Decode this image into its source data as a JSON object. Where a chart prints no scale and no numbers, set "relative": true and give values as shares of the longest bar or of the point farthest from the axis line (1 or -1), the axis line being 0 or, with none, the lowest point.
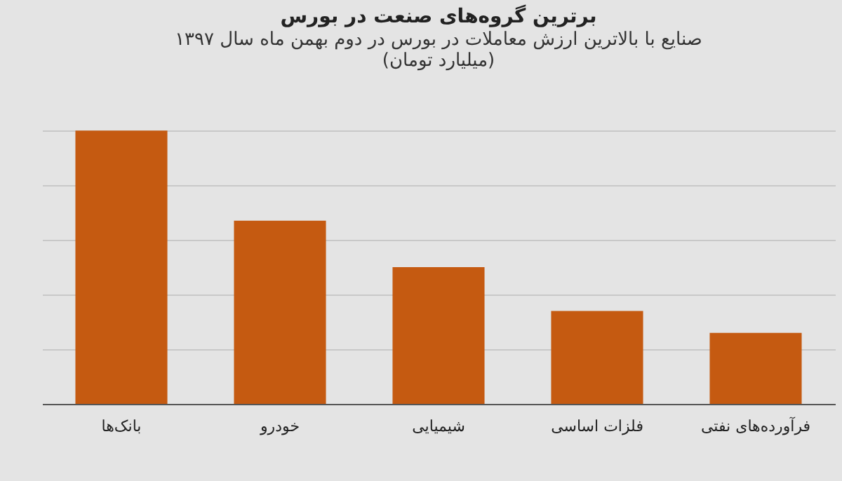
{
  "chart_data": {
    "type": "bar",
    "title": "برترین گروه‌های صنعت در بورس",
    "subtitle": "صنایع با بالاترین ارزش  معاملات در بورس در دوم بهمن ماه سال ۱۳۹۷ (میلیارد تومان)",
    "categories": [
      "بانک‌ها",
      "خودرو",
      "شیمیایی",
      "فلزات اساسی",
      "فرآورده‌های نفتی"
    ],
    "values": [
      1,
      0.67,
      0.5,
      0.34,
      0.26
    ],
    "color": "#c55a11",
    "relative": true,
    "grid": "y"
  }
}
